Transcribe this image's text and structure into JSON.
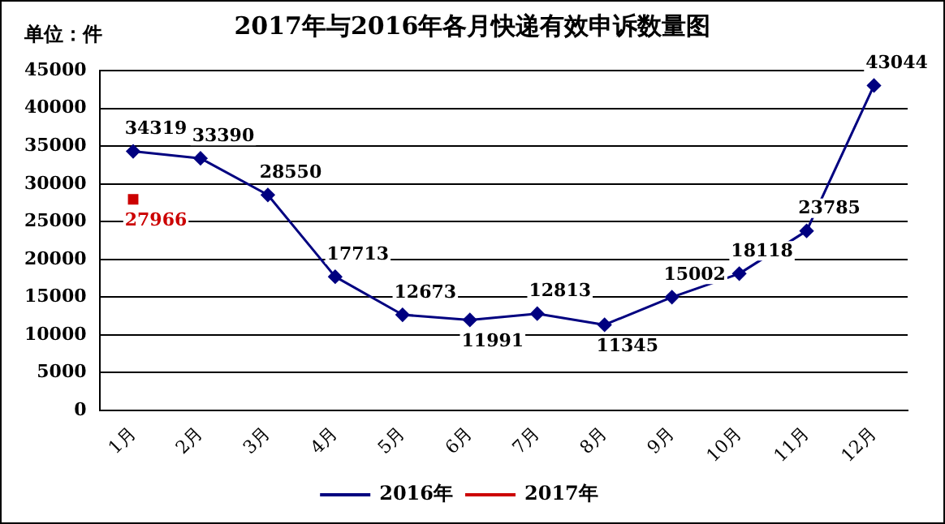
{
  "chart_data": {
    "type": "line",
    "title": "2017年与2016年各月快递有效申诉数量图",
    "annotations": [
      "单位：件"
    ],
    "categories": [
      "1月",
      "2月",
      "3月",
      "4月",
      "5月",
      "6月",
      "7月",
      "8月",
      "9月",
      "10月",
      "11月",
      "12月"
    ],
    "series": [
      {
        "name": "2016年",
        "color": "#000080",
        "marker": "diamond",
        "values": [
          34319,
          33390,
          28550,
          17713,
          12673,
          11991,
          12813,
          11345,
          15002,
          18118,
          23785,
          43044
        ]
      },
      {
        "name": "2017年",
        "color": "#cc0000",
        "marker": "square",
        "values": [
          27966,
          null,
          null,
          null,
          null,
          null,
          null,
          null,
          null,
          null,
          null,
          null
        ]
      }
    ],
    "ylim": [
      0,
      45000
    ],
    "yticks": [
      0,
      5000,
      10000,
      15000,
      20000,
      25000,
      30000,
      35000,
      40000,
      45000
    ],
    "grid": "y",
    "legend": "bottom",
    "data_labels": true,
    "line_style": "solid"
  }
}
